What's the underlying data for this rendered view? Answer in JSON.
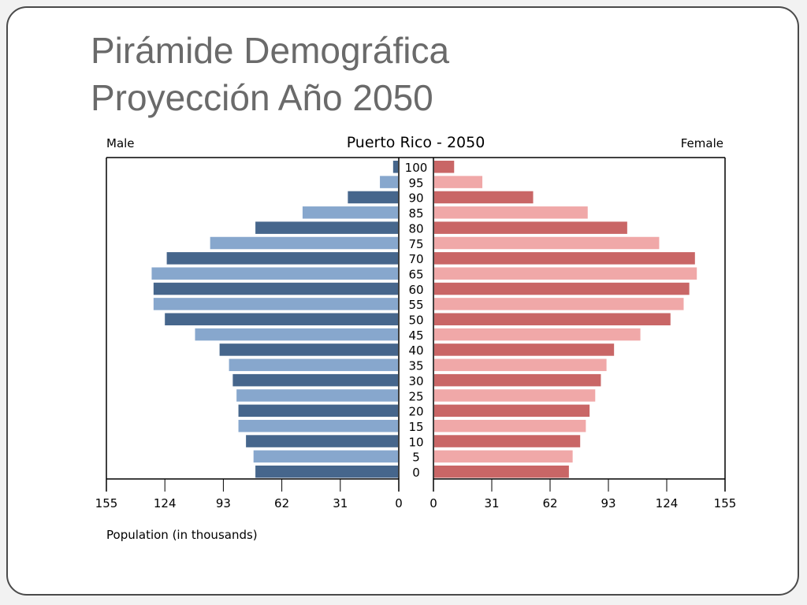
{
  "slide": {
    "title_line1": "Pirámide Demográfica",
    "title_line2": "Proyección Año 2050"
  },
  "colors": {
    "male_dark": "#46668c",
    "male_light": "#87a7cd",
    "female_dark": "#c96666",
    "female_light": "#f0a8a8",
    "slide_title": "#6a6a6a"
  },
  "chart_data": {
    "type": "bar",
    "orientation": "horizontal-pyramid",
    "title": "Puerto Rico - 2050",
    "left_label": "Male",
    "right_label": "Female",
    "xlabel": "Population (in thousands)",
    "xlim": [
      0,
      155
    ],
    "x_ticks": [
      0,
      31,
      62,
      93,
      124,
      155
    ],
    "categories": [
      "0",
      "5",
      "10",
      "15",
      "20",
      "25",
      "30",
      "35",
      "40",
      "45",
      "50",
      "55",
      "60",
      "65",
      "70",
      "75",
      "80",
      "85",
      "90",
      "95",
      "100"
    ],
    "series": [
      {
        "name": "Male",
        "values": [
          76,
          77,
          81,
          85,
          85,
          86,
          88,
          90,
          95,
          108,
          124,
          130,
          130,
          131,
          123,
          100,
          76,
          51,
          27,
          10,
          3
        ]
      },
      {
        "name": "Female",
        "values": [
          72,
          74,
          78,
          81,
          83,
          86,
          89,
          92,
          96,
          110,
          126,
          133,
          136,
          140,
          139,
          120,
          103,
          82,
          53,
          26,
          11
        ]
      }
    ],
    "grid": false
  }
}
